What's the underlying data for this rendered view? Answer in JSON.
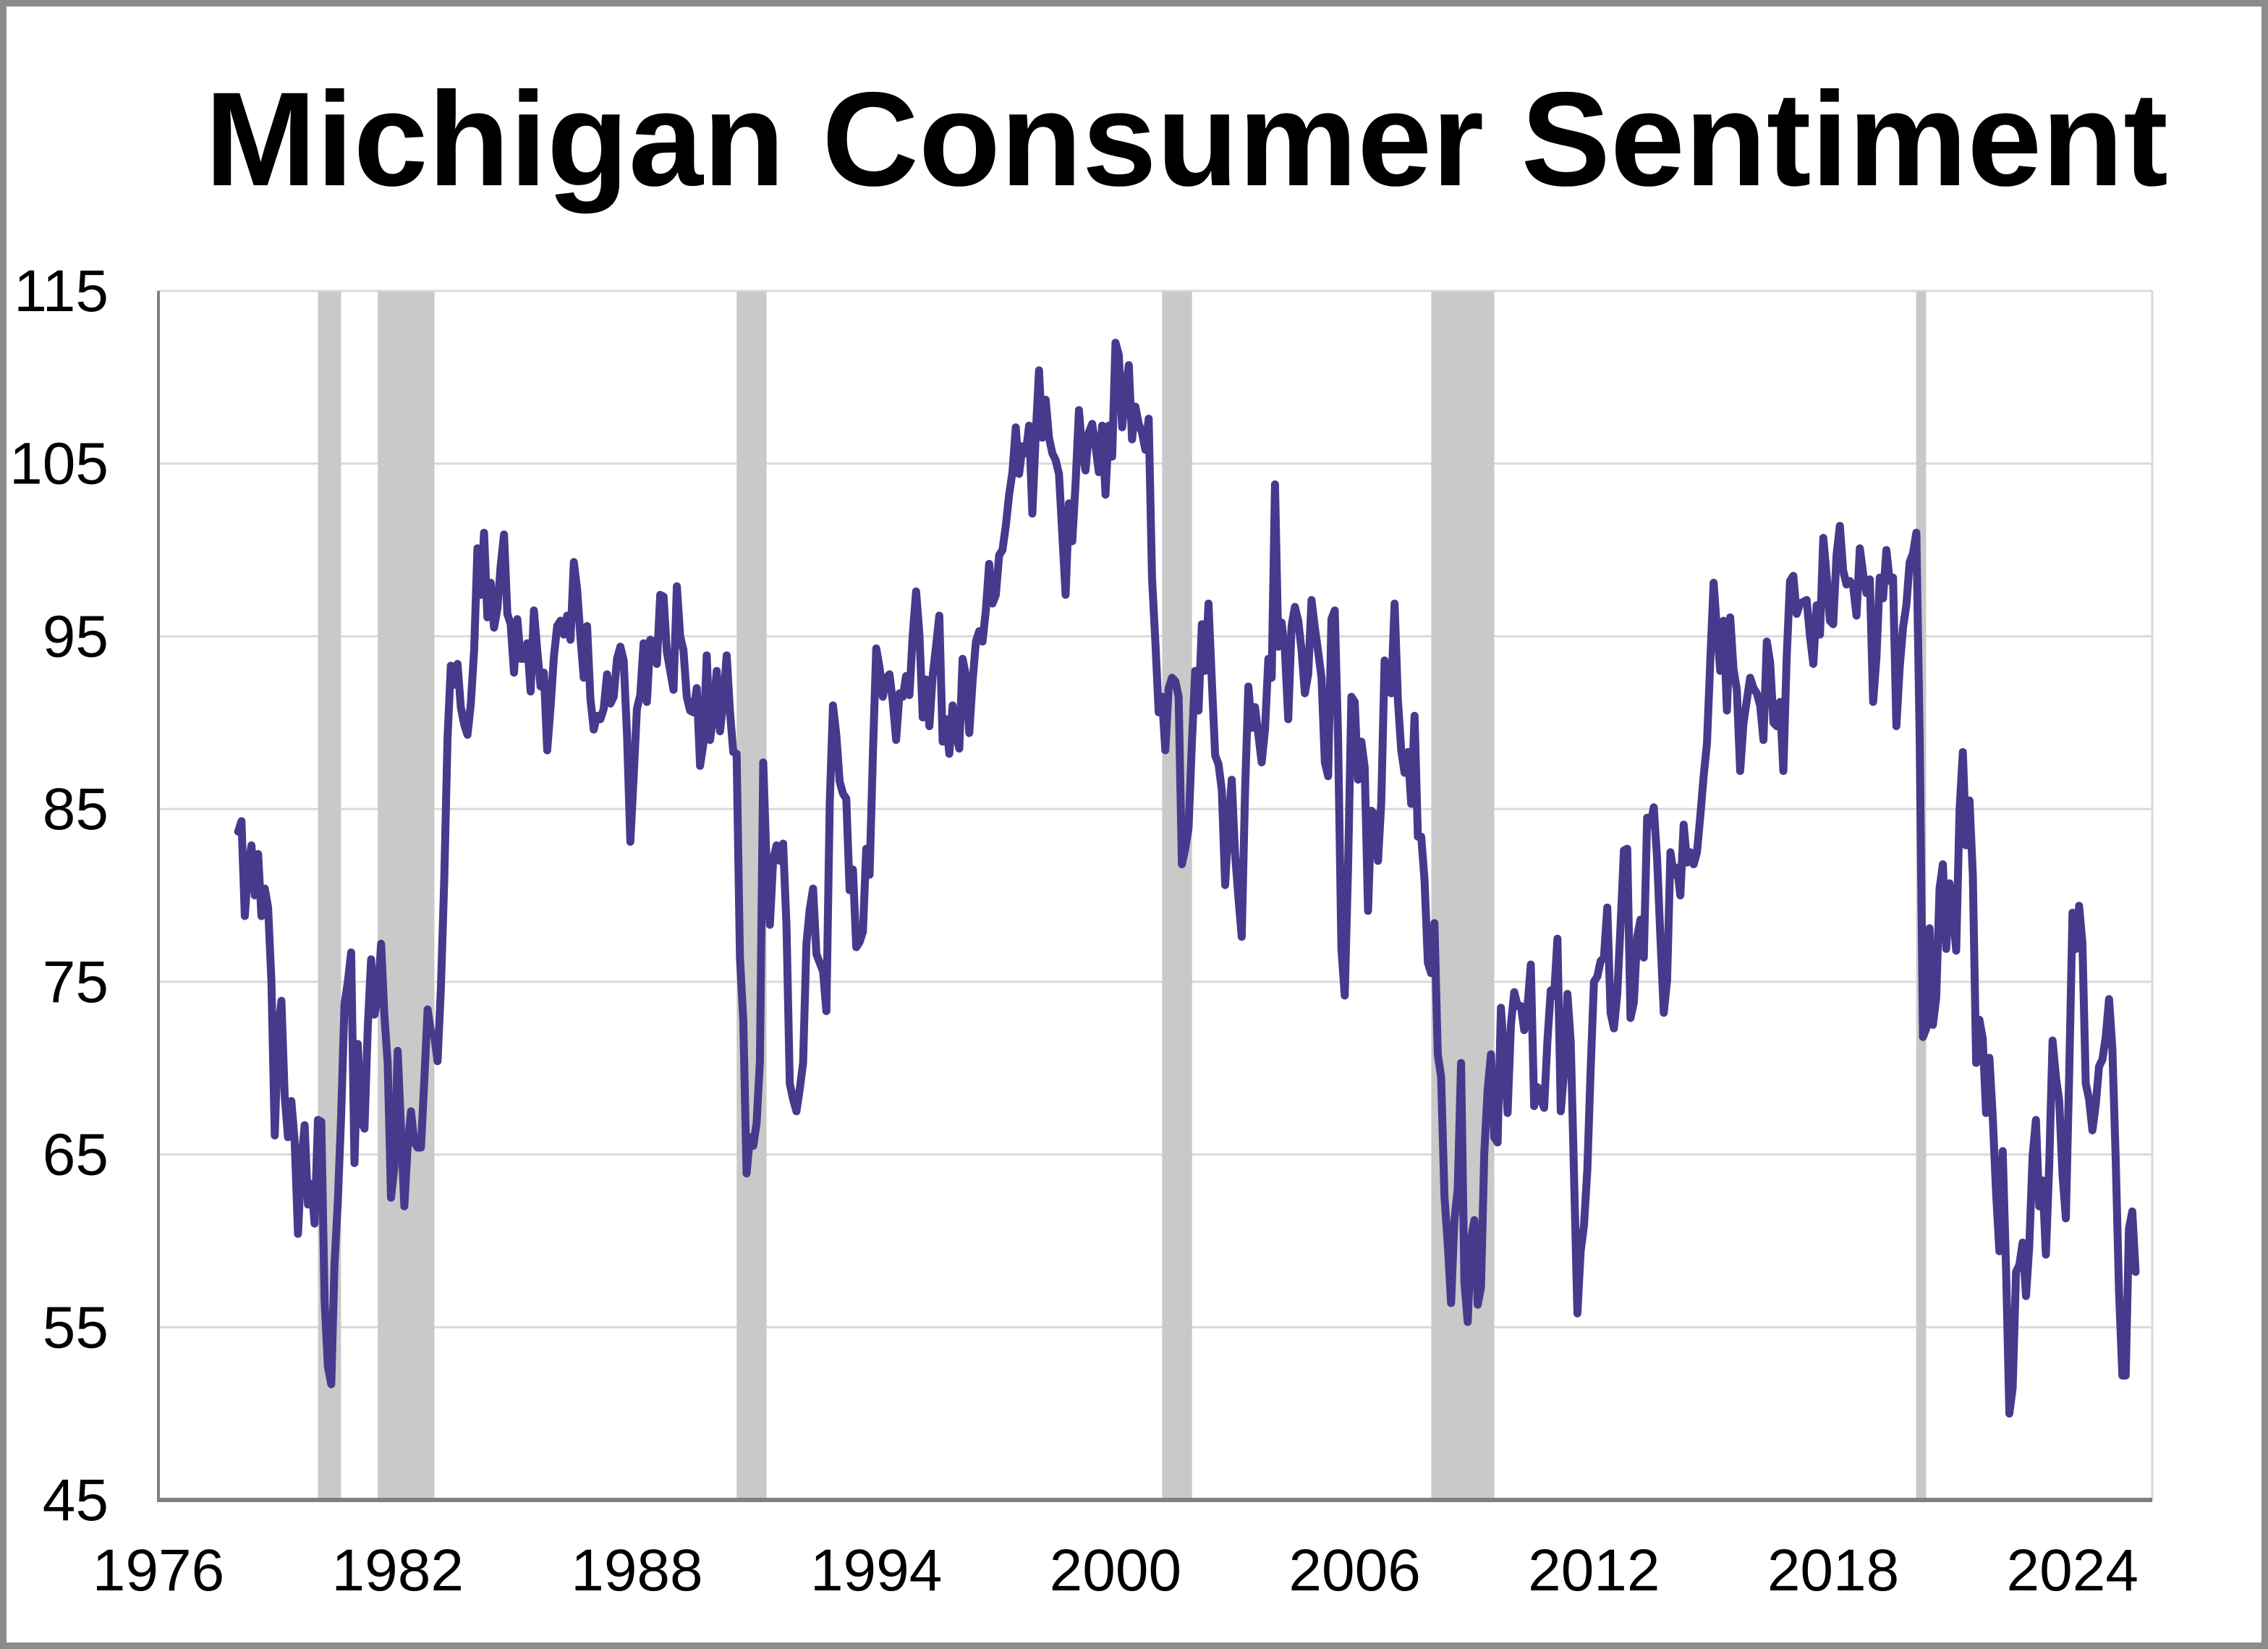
{
  "title": "Michigan Consumer Sentiment",
  "colors": {
    "line": "#463A8D",
    "recession_band": "#C9C9C9",
    "gridline": "#D9D9D9",
    "plot_border": "#D9D9D9",
    "axis": "#808080",
    "frame": "#8C8C8C",
    "background": "#FFFFFF",
    "text": "#000000"
  },
  "chart_data": {
    "type": "line",
    "title": "Michigan Consumer Sentiment",
    "x_domain": [
      1976,
      2026
    ],
    "x_ticks": [
      1976,
      1982,
      1988,
      1994,
      2000,
      2006,
      2012,
      2018,
      2024
    ],
    "y_domain": [
      45,
      115
    ],
    "y_ticks": [
      45,
      55,
      65,
      75,
      85,
      95,
      105,
      115
    ],
    "grid": true,
    "legend": false,
    "frequency": "monthly",
    "start_year": 1978,
    "start_month": 1,
    "values": [
      83.7,
      84.3,
      78.8,
      81.6,
      82.9,
      80.0,
      82.4,
      78.8,
      80.4,
      79.3,
      75.0,
      66.1,
      72.1,
      73.9,
      68.4,
      66.0,
      68.1,
      65.8,
      60.4,
      64.5,
      66.7,
      62.1,
      63.3,
      61.0,
      67.0,
      66.9,
      56.5,
      52.7,
      51.7,
      58.7,
      62.3,
      67.3,
      73.7,
      75.0,
      76.7,
      64.5,
      71.4,
      66.9,
      66.5,
      72.4,
      76.3,
      73.1,
      74.1,
      77.2,
      73.1,
      70.3,
      62.5,
      64.3,
      71.0,
      66.5,
      62.0,
      65.5,
      67.5,
      65.7,
      65.4,
      65.4,
      69.3,
      73.4,
      72.1,
      71.9,
      70.4,
      74.6,
      80.8,
      89.1,
      93.3,
      92.2,
      93.4,
      90.9,
      89.9,
      89.3,
      91.1,
      94.2,
      100.1,
      97.4,
      101.0,
      96.1,
      98.1,
      95.5,
      96.6,
      99.1,
      100.9,
      96.3,
      95.7,
      92.9,
      96.0,
      93.7,
      93.7,
      94.6,
      91.8,
      96.5,
      94.2,
      92.1,
      92.9,
      88.4,
      90.9,
      93.8,
      95.6,
      95.9,
      95.1,
      96.2,
      94.8,
      99.3,
      97.7,
      94.9,
      92.6,
      95.6,
      91.4,
      89.6,
      90.4,
      90.2,
      90.8,
      92.8,
      91.1,
      91.5,
      93.7,
      94.4,
      93.6,
      89.3,
      83.1,
      86.8,
      90.8,
      91.6,
      94.6,
      91.2,
      94.8,
      94.7,
      93.4,
      97.4,
      97.3,
      94.1,
      93.0,
      91.9,
      97.9,
      95.0,
      94.2,
      91.5,
      90.7,
      90.6,
      92.0,
      87.5,
      88.8,
      93.9,
      89.0,
      90.5,
      93.0,
      89.5,
      91.3,
      93.9,
      90.6,
      88.3,
      88.2,
      76.4,
      72.8,
      63.9,
      66.0,
      65.5,
      66.8,
      70.4,
      87.7,
      81.8,
      78.3,
      82.1,
      82.9,
      82.0,
      83.0,
      78.3,
      69.1,
      68.2,
      67.5,
      68.8,
      70.3,
      77.2,
      79.2,
      80.4,
      76.6,
      76.1,
      75.6,
      73.3,
      85.3,
      91.0,
      89.3,
      86.6,
      85.9,
      85.6,
      80.3,
      81.5,
      77.0,
      77.3,
      77.9,
      82.7,
      81.2,
      88.2,
      94.3,
      93.2,
      91.5,
      92.6,
      92.8,
      91.2,
      89.0,
      91.7,
      91.5,
      92.7,
      91.6,
      95.1,
      97.6,
      95.1,
      90.3,
      92.5,
      89.8,
      92.7,
      94.4,
      96.2,
      88.9,
      90.2,
      88.2,
      91.0,
      89.3,
      88.5,
      93.7,
      92.7,
      89.4,
      92.4,
      94.7,
      95.3,
      94.7,
      96.5,
      99.2,
      96.9,
      97.4,
      99.7,
      100.0,
      101.4,
      103.2,
      104.5,
      107.1,
      104.4,
      106.0,
      105.6,
      107.2,
      102.1,
      106.6,
      110.4,
      106.5,
      108.7,
      106.5,
      105.6,
      105.2,
      104.4,
      100.9,
      97.4,
      102.7,
      100.5,
      103.9,
      108.1,
      105.7,
      104.6,
      106.8,
      107.3,
      106.0,
      104.5,
      107.2,
      103.2,
      107.2,
      105.4,
      112.0,
      111.3,
      107.1,
      109.2,
      110.7,
      106.4,
      108.3,
      107.3,
      106.8,
      105.8,
      107.6,
      98.4,
      94.7,
      90.6,
      91.5,
      88.4,
      92.0,
      92.6,
      92.4,
      91.5,
      81.8,
      82.7,
      83.9,
      88.8,
      93.0,
      90.7,
      95.7,
      93.0,
      96.9,
      92.4,
      88.1,
      87.6,
      86.1,
      80.6,
      84.2,
      86.7,
      82.4,
      79.9,
      77.6,
      86.0,
      92.1,
      89.7,
      90.9,
      89.3,
      87.7,
      89.6,
      93.7,
      92.6,
      103.8,
      94.4,
      95.8,
      94.2,
      90.2,
      95.6,
      96.7,
      95.9,
      94.2,
      91.7,
      92.8,
      97.1,
      95.5,
      94.1,
      92.6,
      87.7,
      86.9,
      96.0,
      96.5,
      89.1,
      76.9,
      74.2,
      81.6,
      91.5,
      91.2,
      86.7,
      88.9,
      87.4,
      79.1,
      84.9,
      84.7,
      82.0,
      85.4,
      93.6,
      92.1,
      91.7,
      96.9,
      91.3,
      88.4,
      87.1,
      88.3,
      85.3,
      90.4,
      83.4,
      83.4,
      80.9,
      76.1,
      75.5,
      78.4,
      70.8,
      69.5,
      62.6,
      59.8,
      56.4,
      61.2,
      63.0,
      70.3,
      57.6,
      55.3,
      60.1,
      61.2,
      56.3,
      57.3,
      65.1,
      68.7,
      70.8,
      66.0,
      65.7,
      73.5,
      70.6,
      67.4,
      72.5,
      74.4,
      73.6,
      73.6,
      72.2,
      73.6,
      76.0,
      67.8,
      68.9,
      68.2,
      67.7,
      71.6,
      74.5,
      74.2,
      77.5,
      67.5,
      69.8,
      74.3,
      71.5,
      63.7,
      55.8,
      59.4,
      60.9,
      64.1,
      69.9,
      75.0,
      75.3,
      76.2,
      76.4,
      79.3,
      73.2,
      72.3,
      74.3,
      78.3,
      82.6,
      82.7,
      72.9,
      73.8,
      77.6,
      78.6,
      76.4,
      84.5,
      84.1,
      85.1,
      82.1,
      77.5,
      73.2,
      75.1,
      82.5,
      81.2,
      81.6,
      80.0,
      84.1,
      81.9,
      82.5,
      81.8,
      82.5,
      84.6,
      86.9,
      88.8,
      93.6,
      98.1,
      95.4,
      93.0,
      95.9,
      90.7,
      96.1,
      93.1,
      91.9,
      87.2,
      90.0,
      91.3,
      92.6,
      92.0,
      91.7,
      91.0,
      89.0,
      94.7,
      93.5,
      90.0,
      89.8,
      91.2,
      87.2,
      93.8,
      98.2,
      98.5,
      96.3,
      96.9,
      97.0,
      97.1,
      95.0,
      93.4,
      96.8,
      95.1,
      100.7,
      98.5,
      95.9,
      95.7,
      99.7,
      101.4,
      98.8,
      98.0,
      98.2,
      97.9,
      96.2,
      100.1,
      98.6,
      97.5,
      98.3,
      91.2,
      93.8,
      98.4,
      97.2,
      100.0,
      98.2,
      98.4,
      89.8,
      93.2,
      95.5,
      96.8,
      99.3,
      99.8,
      101.0,
      89.1,
      71.8,
      72.3,
      78.1,
      72.5,
      74.1,
      80.4,
      81.8,
      76.9,
      80.7,
      79.0,
      76.8,
      84.9,
      88.3,
      82.9,
      85.5,
      81.2,
      70.3,
      72.8,
      71.7,
      67.4,
      70.6,
      67.2,
      62.8,
      59.4,
      65.2,
      58.4,
      50.0,
      51.5,
      58.2,
      58.6,
      59.9,
      56.8,
      59.7,
      64.9,
      67.0,
      62.0,
      63.5,
      59.2,
      64.4,
      71.6,
      69.5,
      68.1,
      63.8,
      61.3,
      69.7,
      79.0,
      76.9,
      79.4,
      77.2,
      69.1,
      68.2,
      66.4,
      67.9,
      70.1,
      70.5,
      71.8,
      74.0,
      71.1,
      64.7,
      57.0,
      52.2,
      52.2,
      60.7,
      61.7,
      58.2
    ],
    "recessions": [
      [
        1980.0,
        1980.58
      ],
      [
        1981.5,
        1982.92
      ],
      [
        1990.5,
        1991.25
      ],
      [
        2001.17,
        2001.92
      ],
      [
        2007.92,
        2009.5
      ],
      [
        2020.08,
        2020.33
      ]
    ]
  }
}
